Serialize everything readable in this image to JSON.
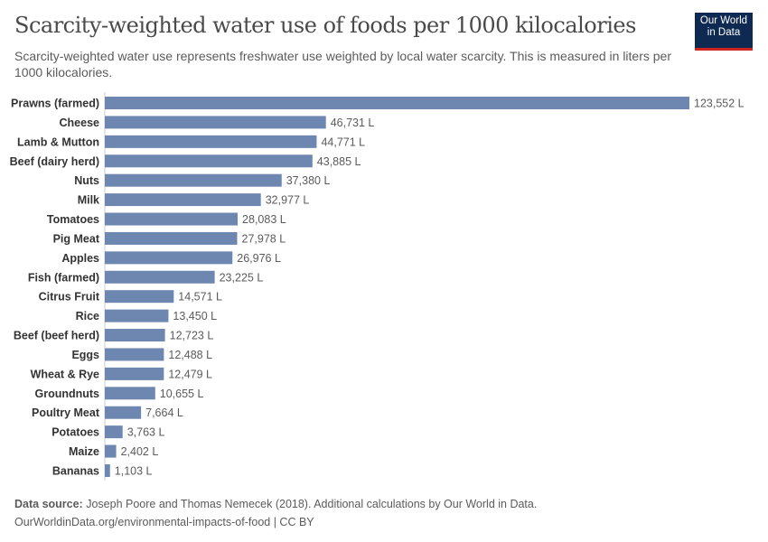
{
  "title": "Scarcity-weighted water use of foods per 1000 kilocalories",
  "subtitle": "Scarcity-weighted water use represents freshwater use weighted by local water scarcity. This is measured in liters per 1000 kilocalories.",
  "logo": {
    "line1": "Our World",
    "line2": "in Data"
  },
  "footer": {
    "source_label": "Data source:",
    "source": "Joseph Poore and Thomas Nemecek (2018). Additional calculations by Our World in Data.",
    "url": "OurWorldinData.org/environmental-impacts-of-food | CC BY"
  },
  "chart_data": {
    "type": "bar",
    "orientation": "horizontal",
    "unit": "L",
    "bar_color": "#6d87b0",
    "categories": [
      "Prawns (farmed)",
      "Cheese",
      "Lamb & Mutton",
      "Beef (dairy herd)",
      "Nuts",
      "Milk",
      "Tomatoes",
      "Pig Meat",
      "Apples",
      "Fish (farmed)",
      "Citrus Fruit",
      "Rice",
      "Beef (beef herd)",
      "Eggs",
      "Wheat & Rye",
      "Groundnuts",
      "Poultry Meat",
      "Potatoes",
      "Maize",
      "Bananas"
    ],
    "values": [
      123552,
      46731,
      44771,
      43885,
      37380,
      32977,
      28083,
      27978,
      26976,
      23225,
      14571,
      13450,
      12723,
      12488,
      12479,
      10655,
      7664,
      3763,
      2402,
      1103
    ],
    "value_labels": [
      "123,552 L",
      "46,731 L",
      "44,771 L",
      "43,885 L",
      "37,380 L",
      "32,977 L",
      "28,083 L",
      "27,978 L",
      "26,976 L",
      "23,225 L",
      "14,571 L",
      "13,450 L",
      "12,723 L",
      "12,488 L",
      "12,479 L",
      "10,655 L",
      "7,664 L",
      "3,763 L",
      "2,402 L",
      "1,103 L"
    ]
  }
}
